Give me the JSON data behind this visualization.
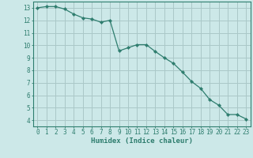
{
  "x": [
    0,
    1,
    2,
    3,
    4,
    5,
    6,
    7,
    8,
    9,
    10,
    11,
    12,
    13,
    14,
    15,
    16,
    17,
    18,
    19,
    20,
    21,
    22,
    23
  ],
  "y": [
    13.0,
    13.1,
    13.1,
    12.9,
    12.5,
    12.2,
    12.1,
    11.85,
    12.0,
    9.55,
    9.8,
    10.05,
    10.05,
    9.5,
    9.0,
    8.55,
    7.85,
    7.1,
    6.55,
    5.65,
    5.2,
    4.45,
    4.45,
    4.1
  ],
  "line_color": "#2e7d6e",
  "marker": "D",
  "marker_size": 2.2,
  "bg_color": "#cce8e8",
  "grid_color": "#aac8c8",
  "xlabel": "Humidex (Indice chaleur)",
  "xlim": [
    -0.5,
    23.5
  ],
  "ylim": [
    3.5,
    13.5
  ],
  "xticks": [
    0,
    1,
    2,
    3,
    4,
    5,
    6,
    7,
    8,
    9,
    10,
    11,
    12,
    13,
    14,
    15,
    16,
    17,
    18,
    19,
    20,
    21,
    22,
    23
  ],
  "yticks": [
    4,
    5,
    6,
    7,
    8,
    9,
    10,
    11,
    12,
    13
  ],
  "axis_color": "#2e7d6e",
  "tick_label_color": "#2e7d6e",
  "xlabel_color": "#2e7d6e",
  "tick_fontsize": 5.5,
  "label_fontsize": 6.5
}
